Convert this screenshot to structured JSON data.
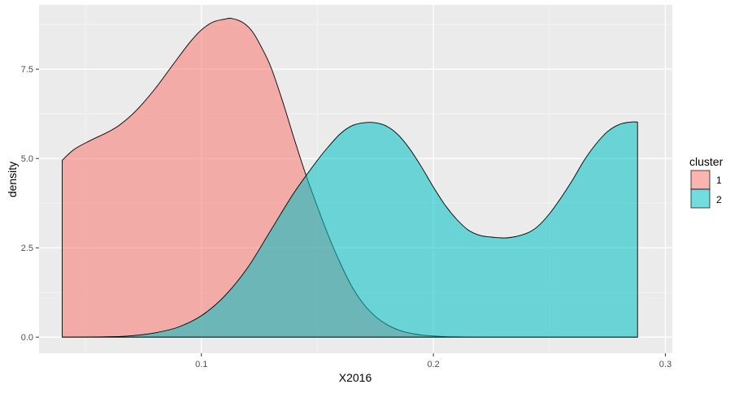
{
  "chart_data": {
    "type": "area",
    "subtype": "density",
    "xlabel": "X2016",
    "ylabel": "density",
    "xlim": [
      0.03,
      0.303
    ],
    "ylim": [
      -0.45,
      9.3
    ],
    "x_ticks": [
      0.1,
      0.2,
      0.3
    ],
    "x_tick_labels": [
      "0.1",
      "0.2",
      "0.3"
    ],
    "y_ticks": [
      0.0,
      2.5,
      5.0,
      7.5
    ],
    "y_tick_labels": [
      "0.0",
      "2.5",
      "5.0",
      "7.5"
    ],
    "grid": true,
    "legend": {
      "title": "cluster",
      "placement": "right"
    },
    "series": [
      {
        "name": "1",
        "color": "#F8766D",
        "fill_opacity": 0.55,
        "x": [
          0.04,
          0.045,
          0.052,
          0.06,
          0.065,
          0.072,
          0.08,
          0.088,
          0.095,
          0.1,
          0.105,
          0.11,
          0.113,
          0.118,
          0.122,
          0.126,
          0.13,
          0.135,
          0.14,
          0.145,
          0.15,
          0.155,
          0.16,
          0.165,
          0.17,
          0.175,
          0.18,
          0.185,
          0.19,
          0.195,
          0.2,
          0.205,
          0.21,
          0.215,
          0.22,
          0.24,
          0.26,
          0.288
        ],
        "y": [
          4.95,
          5.25,
          5.5,
          5.75,
          5.95,
          6.35,
          6.95,
          7.65,
          8.25,
          8.6,
          8.82,
          8.9,
          8.92,
          8.8,
          8.55,
          8.1,
          7.55,
          6.6,
          5.55,
          4.55,
          3.65,
          2.8,
          2.05,
          1.4,
          0.92,
          0.58,
          0.35,
          0.2,
          0.11,
          0.06,
          0.03,
          0.015,
          0.008,
          0.004,
          0.0,
          0.0,
          0.0,
          0.0
        ]
      },
      {
        "name": "2",
        "color": "#00BFC4",
        "fill_opacity": 0.55,
        "x": [
          0.04,
          0.06,
          0.07,
          0.08,
          0.09,
          0.1,
          0.11,
          0.12,
          0.13,
          0.14,
          0.15,
          0.155,
          0.16,
          0.165,
          0.17,
          0.175,
          0.18,
          0.185,
          0.19,
          0.195,
          0.2,
          0.205,
          0.21,
          0.215,
          0.22,
          0.225,
          0.232,
          0.24,
          0.245,
          0.25,
          0.255,
          0.26,
          0.265,
          0.27,
          0.275,
          0.28,
          0.285,
          0.288
        ],
        "y": [
          0.0,
          0.01,
          0.04,
          0.12,
          0.28,
          0.6,
          1.15,
          1.95,
          3.0,
          4.05,
          4.95,
          5.35,
          5.7,
          5.92,
          6.0,
          6.0,
          5.9,
          5.65,
          5.25,
          4.75,
          4.2,
          3.7,
          3.3,
          3.0,
          2.85,
          2.8,
          2.78,
          2.9,
          3.1,
          3.45,
          3.9,
          4.4,
          4.95,
          5.4,
          5.75,
          5.95,
          6.02,
          6.02
        ]
      }
    ]
  }
}
